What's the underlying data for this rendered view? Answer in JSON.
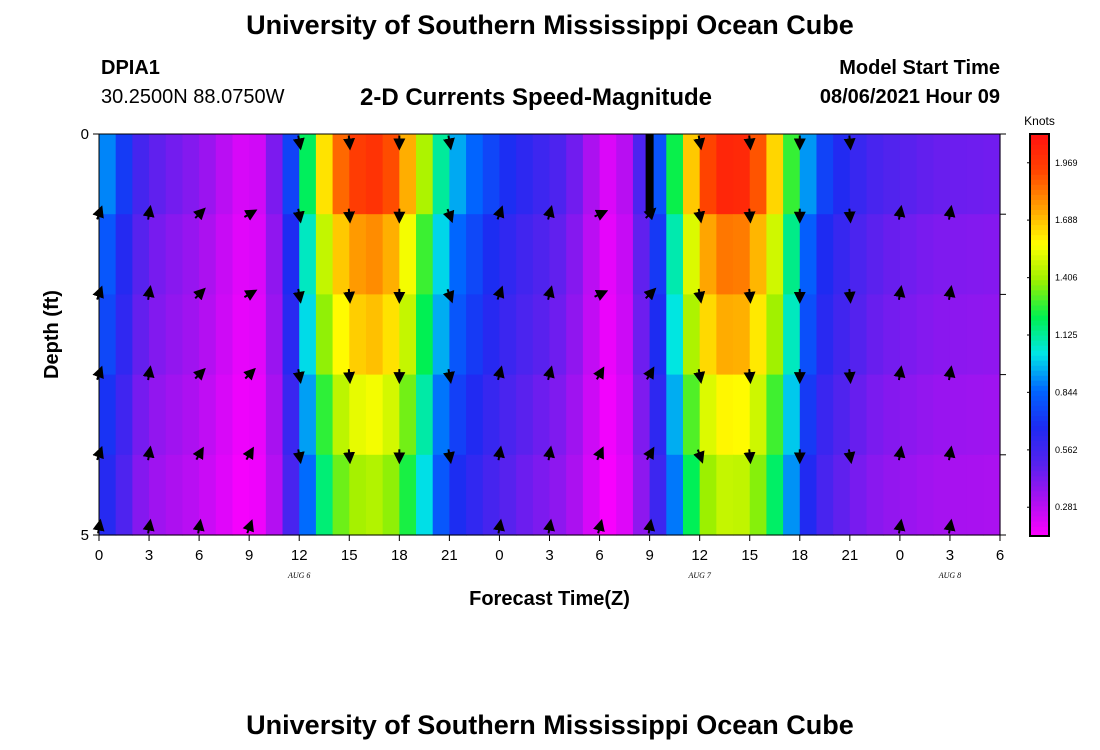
{
  "page": {
    "title": "University of Southern Mississippi Ocean Cube",
    "footer_title": "University of Southern Mississippi Ocean Cube",
    "station_id": "DPIA1",
    "location": "30.2500N  88.0750W",
    "model_start_label": "Model Start Time",
    "model_start_time": "08/06/2021 Hour 09"
  },
  "chart_data": {
    "type": "heatmap",
    "title": "2-D Currents Speed-Magnitude",
    "xlabel": "Forecast Time(Z)",
    "ylabel": "Depth (ft)",
    "x_hours": [
      0,
      3,
      6,
      9,
      12,
      15,
      18,
      21,
      24,
      27,
      30,
      33,
      36,
      39,
      42,
      45,
      48,
      51,
      54
    ],
    "x_tick_labels": [
      "0",
      "3",
      "6",
      "9",
      "12",
      "15",
      "18",
      "21",
      "0",
      "3",
      "6",
      "9",
      "12",
      "15",
      "18",
      "21",
      "0",
      "3",
      "6"
    ],
    "date_labels": [
      {
        "hour": 12,
        "text": "AUG 6"
      },
      {
        "hour": 36,
        "text": "AUG 7"
      },
      {
        "hour": 51,
        "text": "AUG 8"
      }
    ],
    "y_range": [
      0,
      5
    ],
    "y_tick_labels": [
      {
        "depth": 0,
        "text": "0"
      },
      {
        "depth": 5,
        "text": "5"
      }
    ],
    "y_minor_ticks": [
      1,
      2,
      3,
      4
    ],
    "depth_levels": [
      0,
      1,
      2,
      3,
      4,
      5
    ],
    "colorbar": {
      "unit": "Knots",
      "min": 0.14,
      "max": 2.11,
      "ticks": [
        0.281,
        0.562,
        0.844,
        1.125,
        1.406,
        1.688,
        1.969
      ],
      "tick_labels": [
        "0.281",
        "0.562",
        "0.844",
        "1.125",
        "1.406",
        "1.688",
        "1.969"
      ],
      "colors": [
        "#ff00ff",
        "#aa11f0",
        "#5522ee",
        "#1d2bf2",
        "#0066ff",
        "#00e6e6",
        "#00f050",
        "#9cf000",
        "#ffff00",
        "#ffa000",
        "#ff4400",
        "#ff1010"
      ]
    },
    "speed_profile": {
      "hours": [
        0,
        1,
        2,
        3,
        4,
        5,
        6,
        7,
        8,
        9,
        10,
        11,
        12,
        13,
        14,
        15,
        16,
        17,
        18,
        19,
        20,
        21,
        22,
        23,
        24,
        25,
        26,
        27,
        28,
        29,
        30,
        31,
        32,
        33,
        34,
        35,
        36,
        37,
        38,
        39,
        40,
        41,
        42,
        43,
        44,
        45,
        46,
        47,
        48,
        49,
        50,
        51,
        52,
        53,
        54
      ],
      "surface_knots": [
        0.95,
        0.85,
        0.6,
        0.5,
        0.45,
        0.42,
        0.38,
        0.32,
        0.25,
        0.2,
        0.28,
        0.55,
        0.95,
        1.45,
        1.8,
        1.92,
        2.0,
        1.98,
        1.85,
        1.6,
        1.25,
        1.0,
        0.9,
        0.8,
        0.72,
        0.65,
        0.6,
        0.55,
        0.5,
        0.38,
        0.25,
        0.18,
        0.4,
        0.65,
        0.95,
        1.5,
        1.85,
        2.02,
        2.05,
        2.0,
        1.8,
        1.5,
        1.05,
        0.8,
        0.7,
        0.62,
        0.56,
        0.52,
        0.5,
        0.48,
        0.46,
        0.45,
        0.45,
        0.44,
        0.44
      ],
      "depth_factor": [
        1.0,
        0.9,
        0.85,
        0.78,
        0.72,
        0.66
      ]
    },
    "arrows": {
      "row_depths": [
        0,
        1,
        2,
        3,
        4,
        5
      ],
      "hours": [
        0,
        3,
        6,
        9,
        12,
        15,
        18,
        21,
        24,
        27,
        30,
        33,
        36,
        39,
        42,
        45,
        48,
        51,
        54
      ],
      "direction_deg_by_depth": [
        [
          null,
          null,
          null,
          null,
          170,
          175,
          180,
          170,
          null,
          null,
          null,
          null,
          170,
          175,
          180,
          175,
          null,
          null,
          null
        ],
        [
          20,
          10,
          45,
          60,
          170,
          175,
          180,
          160,
          20,
          15,
          65,
          45,
          170,
          175,
          180,
          175,
          10,
          10,
          null
        ],
        [
          20,
          10,
          45,
          60,
          170,
          175,
          180,
          160,
          20,
          15,
          65,
          45,
          170,
          175,
          180,
          175,
          10,
          10,
          null
        ],
        [
          20,
          10,
          45,
          45,
          170,
          175,
          180,
          170,
          15,
          15,
          30,
          30,
          170,
          175,
          180,
          175,
          10,
          10,
          null
        ],
        [
          20,
          10,
          30,
          30,
          170,
          175,
          180,
          170,
          10,
          10,
          25,
          30,
          160,
          175,
          180,
          170,
          10,
          10,
          null
        ],
        [
          10,
          10,
          10,
          20,
          null,
          null,
          null,
          null,
          10,
          10,
          15,
          10,
          null,
          null,
          null,
          null,
          10,
          10,
          null
        ]
      ]
    },
    "missing_data": [
      {
        "hour": 33,
        "depth_from": 0,
        "depth_to": 1
      }
    ]
  }
}
